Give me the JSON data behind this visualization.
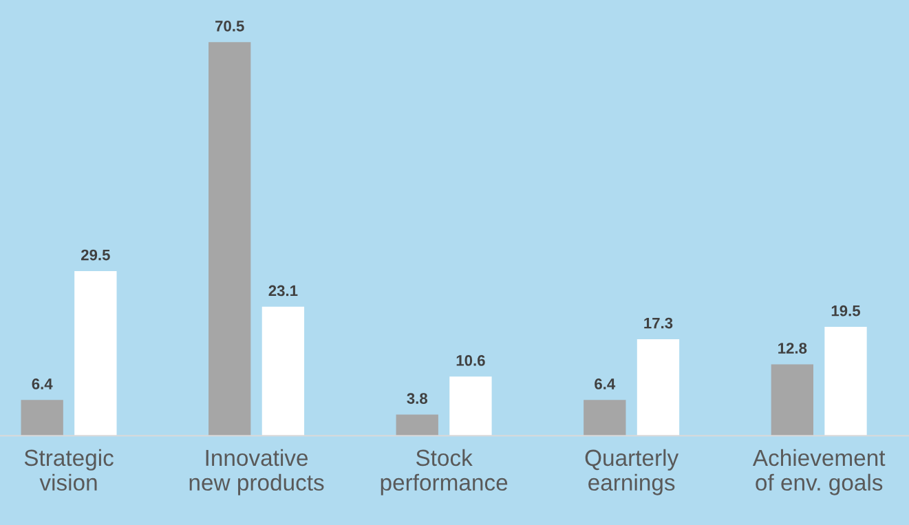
{
  "chart_data": {
    "type": "bar",
    "categories": [
      "Strategic\nvision",
      "Innovative\nnew products",
      "Stock\nperformance",
      "Quarterly\nearnings",
      "Achievement\nof env. goals"
    ],
    "series": [
      {
        "color": "#a6a6a6",
        "values": [
          6.4,
          70.5,
          3.8,
          6.4,
          12.8
        ]
      },
      {
        "color": "#ffffff",
        "values": [
          29.5,
          23.1,
          10.6,
          17.3,
          19.5
        ]
      }
    ],
    "data_labels": true,
    "tick_labels": "x"
  }
}
